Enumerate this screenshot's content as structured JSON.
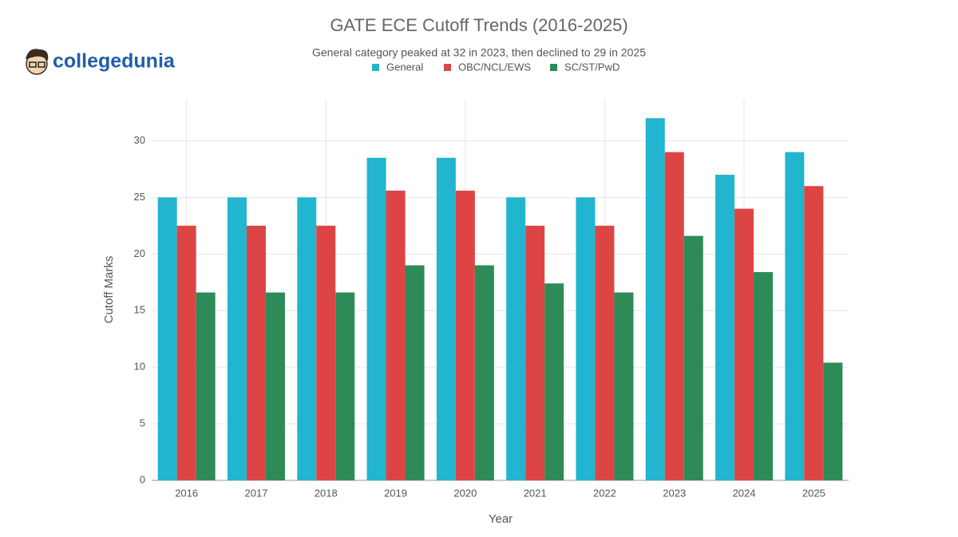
{
  "logo": "collegedunia",
  "chart_data": {
    "type": "bar",
    "title": "GATE ECE Cutoff Trends (2016-2025)",
    "subtitle": "General category peaked at 32 in 2023, then declined to 29 in 2025",
    "x_label": "Year",
    "y_label": "Cutoff Marks",
    "categories": [
      "2016",
      "2017",
      "2018",
      "2019",
      "2020",
      "2021",
      "2022",
      "2023",
      "2024",
      "2025"
    ],
    "series": [
      {
        "name": "General",
        "color": "#22b5cf",
        "values": [
          25,
          25,
          25,
          28.5,
          28.5,
          25,
          25,
          32,
          27,
          29
        ]
      },
      {
        "name": "OBC/NCL/EWS",
        "color": "#dd4545",
        "values": [
          22.5,
          22.5,
          22.5,
          25.6,
          25.6,
          22.5,
          22.5,
          29,
          24,
          26
        ]
      },
      {
        "name": "SC/ST/PwD",
        "color": "#2e8b57",
        "values": [
          16.6,
          16.6,
          16.6,
          19,
          19,
          17.4,
          16.6,
          21.6,
          18.4,
          10.4
        ]
      }
    ],
    "ylim": [
      0,
      33.7
    ],
    "yticks": [
      0,
      5,
      10,
      15,
      20,
      25,
      30
    ],
    "grid": true
  }
}
